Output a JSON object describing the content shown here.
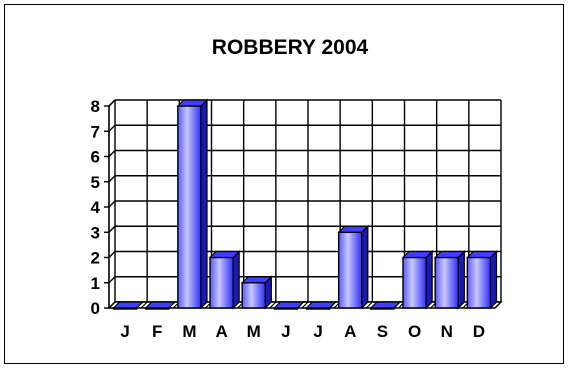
{
  "chart_data": {
    "type": "bar",
    "title": "ROBBERY 2004",
    "xlabel": "",
    "ylabel": "",
    "categories": [
      "J",
      "F",
      "M",
      "A",
      "M",
      "J",
      "J",
      "A",
      "S",
      "O",
      "N",
      "D"
    ],
    "values": [
      0,
      0,
      8,
      2,
      1,
      0,
      0,
      3,
      0,
      2,
      2,
      2
    ],
    "ylim": [
      0,
      8
    ],
    "yticks": [
      "0",
      "1",
      "2",
      "3",
      "4",
      "5",
      "6",
      "7",
      "8"
    ],
    "grid": true,
    "legend": "none",
    "style": "3d",
    "colors": {
      "bar": "#3f3fff",
      "bar_highlight": "#bdbdff",
      "bar_shade": "#1a1ab0",
      "grid": "#000000",
      "frame": "#000000"
    }
  }
}
